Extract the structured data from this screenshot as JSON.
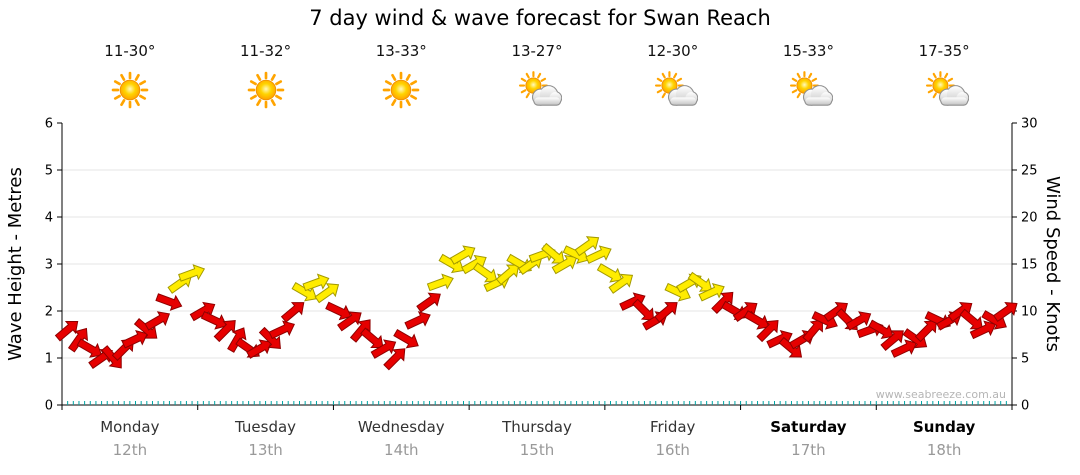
{
  "title": "7 day wind & wave forecast for Swan Reach",
  "watermark": "www.seabreeze.com.au",
  "axes": {
    "left_label": "Wave Height - Metres",
    "right_label": "Wind Speed - Knots"
  },
  "days": [
    {
      "name": "Monday",
      "date": "12th",
      "temp": "11-30°",
      "icon": "sunny",
      "weekend": false
    },
    {
      "name": "Tuesday",
      "date": "13th",
      "temp": "11-32°",
      "icon": "sunny",
      "weekend": false
    },
    {
      "name": "Wednesday",
      "date": "14th",
      "temp": "13-33°",
      "icon": "sunny",
      "weekend": false
    },
    {
      "name": "Thursday",
      "date": "15th",
      "temp": "13-27°",
      "icon": "partly-cloudy",
      "weekend": false
    },
    {
      "name": "Friday",
      "date": "16th",
      "temp": "12-30°",
      "icon": "partly-cloudy",
      "weekend": false
    },
    {
      "name": "Saturday",
      "date": "17th",
      "temp": "15-33°",
      "icon": "partly-cloudy",
      "weekend": true
    },
    {
      "name": "Sunday",
      "date": "18th",
      "temp": "17-35°",
      "icon": "partly-cloudy",
      "weekend": true
    }
  ],
  "chart_data": {
    "type": "scatter",
    "marker": "wind-arrow",
    "title": "7 day wind & wave forecast for Swan Reach",
    "points_per_day": 12,
    "interval_hours": 2,
    "x_days": [
      "Monday 12th",
      "Tuesday 13th",
      "Wednesday 14th",
      "Thursday 15th",
      "Friday 16th",
      "Saturday 17th",
      "Sunday 18th"
    ],
    "y_left": {
      "label": "Wave Height - Metres",
      "lim": [
        0,
        6
      ],
      "ticks": [
        0,
        1,
        2,
        3,
        4,
        5,
        6
      ]
    },
    "y_right": {
      "label": "Wind Speed - Knots",
      "lim": [
        0,
        30
      ],
      "ticks": [
        0,
        5,
        10,
        15,
        20,
        25,
        30
      ]
    },
    "grid": "horizontal",
    "legend": "none",
    "color_rule": {
      "yellow_min_knots": 12
    },
    "colors": {
      "red": "#e60000",
      "red_outline": "#8f0000",
      "yellow": "#ffec00",
      "yellow_outline": "#a39a00",
      "grid_line": "#e4e4e4",
      "axis": "#000000",
      "hour_tick": "#00a2a2"
    },
    "wind_knots": [
      [
        8,
        7,
        6,
        5,
        5,
        6,
        7,
        8,
        9,
        11,
        13,
        14
      ],
      [
        10,
        9,
        8,
        7,
        6,
        6,
        7,
        8,
        10,
        12,
        13,
        12
      ],
      [
        10,
        9,
        8,
        7,
        6,
        5,
        7,
        9,
        11,
        13,
        15,
        16
      ],
      [
        15,
        14,
        13,
        14,
        15,
        15,
        16,
        16,
        15,
        16,
        17,
        16
      ],
      [
        14,
        13,
        11,
        10,
        9,
        10,
        12,
        13,
        13,
        12,
        11,
        10
      ],
      [
        10,
        9,
        8,
        7,
        6,
        7,
        8,
        9,
        10,
        9,
        9,
        8
      ],
      [
        8,
        7,
        6,
        7,
        8,
        9,
        9,
        10,
        9,
        8,
        9,
        10
      ]
    ],
    "wind_dir_deg": [
      [
        -40,
        -55,
        30,
        -35,
        50,
        -45,
        -25,
        40,
        -30,
        20,
        -35,
        -20
      ],
      [
        -30,
        25,
        -45,
        -60,
        35,
        -30,
        45,
        -25,
        -40,
        30,
        -20,
        -35
      ],
      [
        25,
        -35,
        -50,
        40,
        -30,
        -45,
        30,
        -25,
        -35,
        -20,
        30,
        -30
      ],
      [
        -30,
        35,
        -25,
        -40,
        30,
        -35,
        -20,
        40,
        -30,
        25,
        -35,
        -25
      ],
      [
        30,
        -35,
        -25,
        45,
        -30,
        -40,
        25,
        -30,
        35,
        -25,
        -45,
        30
      ],
      [
        -35,
        30,
        -45,
        -25,
        40,
        -30,
        -50,
        25,
        -35,
        45,
        -30,
        -20
      ],
      [
        30,
        -40,
        -25,
        35,
        -45,
        25,
        -30,
        -35,
        40,
        -25,
        30,
        -35
      ]
    ]
  }
}
